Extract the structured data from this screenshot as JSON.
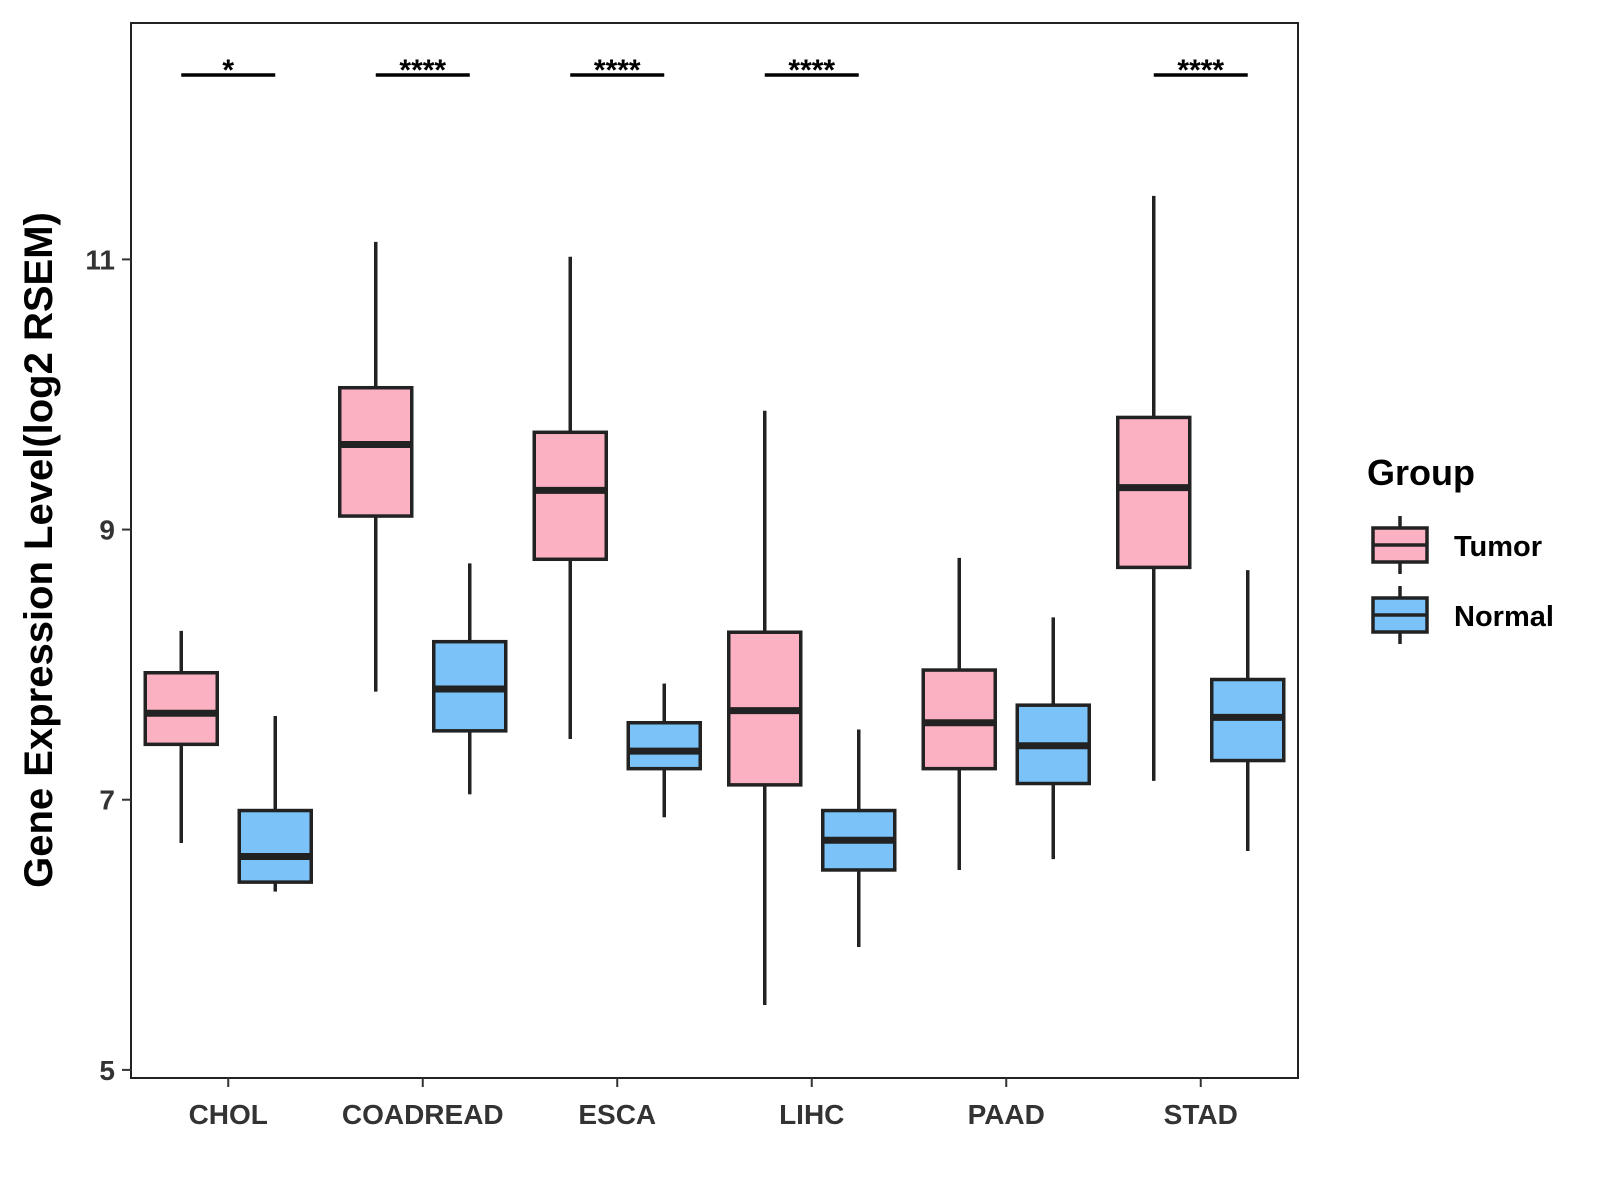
{
  "chart_data": {
    "type": "boxplot",
    "title": "",
    "xlabel": "",
    "ylabel": "Gene Expression Level(log2 RSEM)",
    "ylim": [
      4.94,
      12.75
    ],
    "yticks": [
      5,
      7,
      9,
      11
    ],
    "grid": false,
    "categories": [
      "CHOL",
      "COADREAD",
      "ESCA",
      "LIHC",
      "PAAD",
      "STAD"
    ],
    "significance": [
      "*",
      "****",
      "****",
      "****",
      "",
      "****"
    ],
    "legend": {
      "title": "Group",
      "position": "right"
    },
    "series": [
      {
        "name": "Tumor",
        "color": "#FBB1C2",
        "boxes": [
          {
            "min": 6.68,
            "q1": 7.41,
            "median": 7.64,
            "q3": 7.94,
            "max": 8.25
          },
          {
            "min": 7.8,
            "q1": 9.1,
            "median": 9.63,
            "q3": 10.05,
            "max": 11.13
          },
          {
            "min": 7.45,
            "q1": 8.78,
            "median": 9.29,
            "q3": 9.72,
            "max": 11.02
          },
          {
            "min": 5.48,
            "q1": 7.11,
            "median": 7.66,
            "q3": 8.24,
            "max": 9.88
          },
          {
            "min": 6.48,
            "q1": 7.23,
            "median": 7.57,
            "q3": 7.96,
            "max": 8.79
          },
          {
            "min": 7.14,
            "q1": 8.72,
            "median": 9.31,
            "q3": 9.83,
            "max": 11.47
          }
        ]
      },
      {
        "name": "Normal",
        "color": "#7AC2F8",
        "boxes": [
          {
            "min": 6.32,
            "q1": 6.39,
            "median": 6.58,
            "q3": 6.92,
            "max": 7.62
          },
          {
            "min": 7.04,
            "q1": 7.51,
            "median": 7.82,
            "q3": 8.17,
            "max": 8.75
          },
          {
            "min": 6.87,
            "q1": 7.23,
            "median": 7.36,
            "q3": 7.57,
            "max": 7.86
          },
          {
            "min": 5.91,
            "q1": 6.48,
            "median": 6.7,
            "q3": 6.92,
            "max": 7.52
          },
          {
            "min": 6.56,
            "q1": 7.12,
            "median": 7.4,
            "q3": 7.7,
            "max": 8.35
          },
          {
            "min": 6.62,
            "q1": 7.29,
            "median": 7.61,
            "q3": 7.89,
            "max": 8.7
          }
        ]
      }
    ]
  }
}
